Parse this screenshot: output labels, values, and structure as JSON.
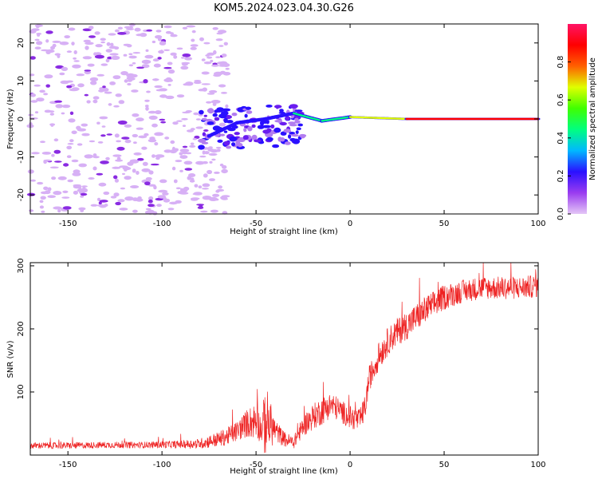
{
  "title": "KOM5.2024.023.04.30.G26",
  "chart_data": [
    {
      "type": "heatmap",
      "xlabel": "Height of straight line (km)",
      "ylabel": "Frequency (Hz)",
      "xlim": [
        -170,
        100
      ],
      "ylim": [
        -25,
        25
      ],
      "xticks": [
        -150,
        -100,
        -50,
        0,
        50,
        100
      ],
      "yticks": [
        -20,
        -10,
        0,
        10,
        20
      ],
      "colorbar": {
        "label": "Normalized spectral amplitude",
        "range": [
          0,
          1
        ],
        "ticks": [
          "0.0",
          "0.2",
          "0.4",
          "0.6",
          "0.8"
        ],
        "colormap": "gist_rainbow_r",
        "colors": [
          "#e4c6f6",
          "#9a3cf0",
          "#2a10ff",
          "#00b8ff",
          "#00ff80",
          "#40ff00",
          "#e0ff00",
          "#ff6000",
          "#ff0000",
          "#ff1466"
        ]
      },
      "tracks": [
        {
          "x": [
            -75,
            -60
          ],
          "f": [
            -4.5,
            -1
          ],
          "amplitude": 0.22
        },
        {
          "x": [
            -60,
            -45
          ],
          "f": [
            -1,
            0
          ],
          "amplitude": 0.2
        },
        {
          "x": [
            -45,
            -30
          ],
          "f": [
            0,
            1.5
          ],
          "amplitude": 0.25
        },
        {
          "x": [
            -30,
            -15
          ],
          "f": [
            1.5,
            -0.5
          ],
          "amplitude": 0.42
        },
        {
          "x": [
            -15,
            0
          ],
          "f": [
            -0.5,
            0.5
          ],
          "amplitude": 0.45
        },
        {
          "x": [
            0,
            30
          ],
          "f": [
            0.5,
            0
          ],
          "amplitude": 0.65
        },
        {
          "x": [
            30,
            100
          ],
          "f": [
            0,
            0
          ],
          "amplitude": 0.85
        }
      ],
      "noise_region_x": [
        -170,
        -80
      ]
    },
    {
      "type": "line",
      "xlabel": "Height of straight line (km)",
      "ylabel": "SNR (v/v)",
      "xlim": [
        -170,
        100
      ],
      "ylim": [
        0,
        305
      ],
      "xticks": [
        -150,
        -100,
        -50,
        0,
        50,
        100
      ],
      "yticks": [
        100,
        200,
        300
      ],
      "color": "#ee2222",
      "series": [
        {
          "x": [
            -170,
            -150,
            -130,
            -110,
            -90,
            -80,
            -70,
            -65,
            -60,
            -55,
            -50,
            -47,
            -45,
            -40,
            -35,
            -30,
            -25,
            -20,
            -15,
            -10,
            -5,
            0,
            5,
            8,
            10,
            15,
            20,
            25,
            30,
            40,
            50,
            60,
            70,
            80,
            90,
            100
          ],
          "y": [
            15,
            15,
            16,
            16,
            17,
            18,
            25,
            30,
            38,
            50,
            55,
            40,
            55,
            40,
            25,
            20,
            45,
            60,
            70,
            80,
            70,
            60,
            55,
            75,
            120,
            155,
            180,
            195,
            205,
            230,
            250,
            260,
            265,
            265,
            265,
            268
          ],
          "noise": [
            5,
            5,
            5,
            5,
            6,
            8,
            12,
            14,
            16,
            22,
            30,
            20,
            60,
            18,
            12,
            10,
            16,
            20,
            22,
            20,
            18,
            18,
            18,
            20,
            20,
            22,
            22,
            22,
            22,
            22,
            20,
            18,
            18,
            18,
            18,
            18
          ]
        }
      ]
    }
  ]
}
